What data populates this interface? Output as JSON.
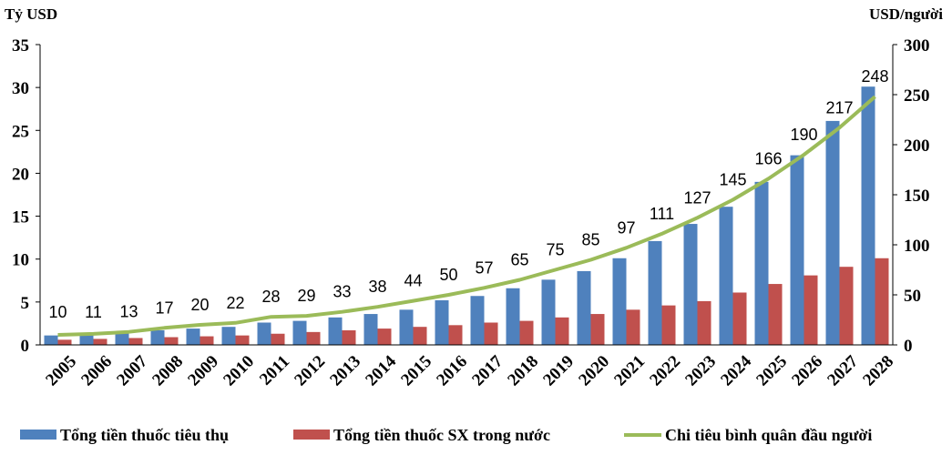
{
  "chart_data": {
    "type": "bar",
    "categories": [
      "2005",
      "2006",
      "2007",
      "2008",
      "2009",
      "2010",
      "2011",
      "2012",
      "2013",
      "2014",
      "2015",
      "2016",
      "2017",
      "2018",
      "2019",
      "2020",
      "2021",
      "2022",
      "2023",
      "2024",
      "2025",
      "2026",
      "2027",
      "2028"
    ],
    "series": [
      {
        "name": "Tổng tiền thuốc tiêu thụ",
        "type": "bar",
        "axis": "left",
        "color": "#4F81BD",
        "values": [
          1.1,
          1.2,
          1.4,
          1.7,
          1.9,
          2.1,
          2.6,
          2.8,
          3.2,
          3.6,
          4.1,
          5.2,
          5.7,
          6.6,
          7.6,
          8.6,
          10.1,
          12.1,
          14.1,
          16.1,
          19.0,
          22.1,
          26.1,
          30.1
        ]
      },
      {
        "name": "Tổng tiền thuốc SX trong nước",
        "type": "bar",
        "axis": "left",
        "color": "#C0504D",
        "values": [
          0.6,
          0.7,
          0.8,
          0.9,
          1.0,
          1.1,
          1.3,
          1.5,
          1.7,
          1.9,
          2.1,
          2.3,
          2.6,
          2.8,
          3.2,
          3.6,
          4.1,
          4.6,
          5.1,
          6.1,
          7.1,
          8.1,
          9.1,
          10.1
        ]
      },
      {
        "name": "Chi tiêu bình quân đầu người",
        "type": "line",
        "axis": "right",
        "color": "#9BBB59",
        "values": [
          10,
          11,
          13,
          17,
          20,
          22,
          28,
          29,
          33,
          38,
          44,
          50,
          57,
          65,
          75,
          85,
          97,
          111,
          127,
          145,
          166,
          190,
          217,
          248
        ],
        "labels": [
          "10",
          "11",
          "13",
          "17",
          "20",
          "22",
          "28",
          "29",
          "33",
          "38",
          "44",
          "50",
          "57",
          "65",
          "75",
          "85",
          "97",
          "111",
          "127",
          "145",
          "166",
          "190",
          "217",
          "248"
        ]
      }
    ],
    "left_axis": {
      "label": "Tỷ USD",
      "ylim": [
        0,
        35
      ],
      "ticks": [
        "0",
        "5",
        "10",
        "15",
        "20",
        "25",
        "30",
        "35"
      ]
    },
    "right_axis": {
      "label": "USD/người",
      "ylim": [
        0,
        300
      ],
      "ticks": [
        "0",
        "50",
        "100",
        "150",
        "200",
        "250",
        "300"
      ]
    },
    "legend_position": "bottom",
    "grid": false
  }
}
